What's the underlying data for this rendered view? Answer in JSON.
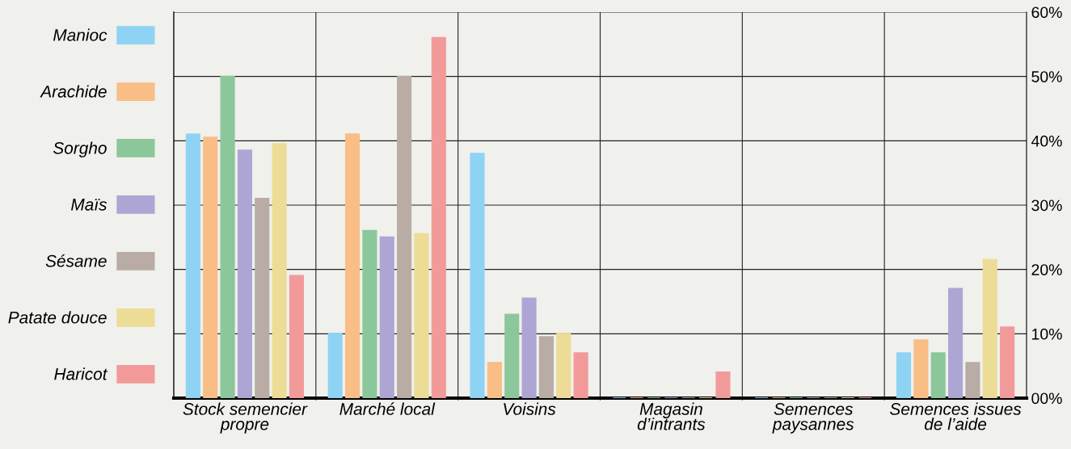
{
  "chart_data": {
    "type": "bar",
    "categories": [
      "Stock semencier\npropre",
      "Marché local",
      "Voisins",
      "Magasin\nd’intrants",
      "Semences\npaysannes",
      "Semences issues\nde l’aide"
    ],
    "series": [
      {
        "name": "Manioc",
        "color": "#8fd3f4",
        "values": [
          41,
          10,
          38,
          0,
          0,
          7
        ]
      },
      {
        "name": "Arachide",
        "color": "#f9bd86",
        "values": [
          40.5,
          41,
          5.5,
          0,
          0,
          9
        ]
      },
      {
        "name": "Sorgho",
        "color": "#8cc79b",
        "values": [
          50,
          26,
          13,
          0,
          0,
          7
        ]
      },
      {
        "name": "Maïs",
        "color": "#ada6d4",
        "values": [
          38.5,
          25,
          15.5,
          0,
          0,
          17
        ]
      },
      {
        "name": "Sésame",
        "color": "#b8aca5",
        "values": [
          31,
          50,
          9.5,
          0,
          0,
          5.5
        ]
      },
      {
        "name": "Patate douce",
        "color": "#ecdc96",
        "values": [
          39.5,
          25.5,
          10,
          0,
          0,
          21.5
        ]
      },
      {
        "name": "Haricot",
        "color": "#f29a9a",
        "values": [
          19,
          56,
          7,
          4,
          0,
          11
        ]
      }
    ],
    "ylim": [
      0,
      60
    ],
    "yticks": [
      {
        "value": 0,
        "label": "00%"
      },
      {
        "value": 10,
        "label": "10%"
      },
      {
        "value": 20,
        "label": "20%"
      },
      {
        "value": 30,
        "label": "30%"
      },
      {
        "value": 40,
        "label": "40%"
      },
      {
        "value": 50,
        "label": "50%"
      },
      {
        "value": 60,
        "label": "60%"
      }
    ],
    "grid": true,
    "legend": "left"
  }
}
